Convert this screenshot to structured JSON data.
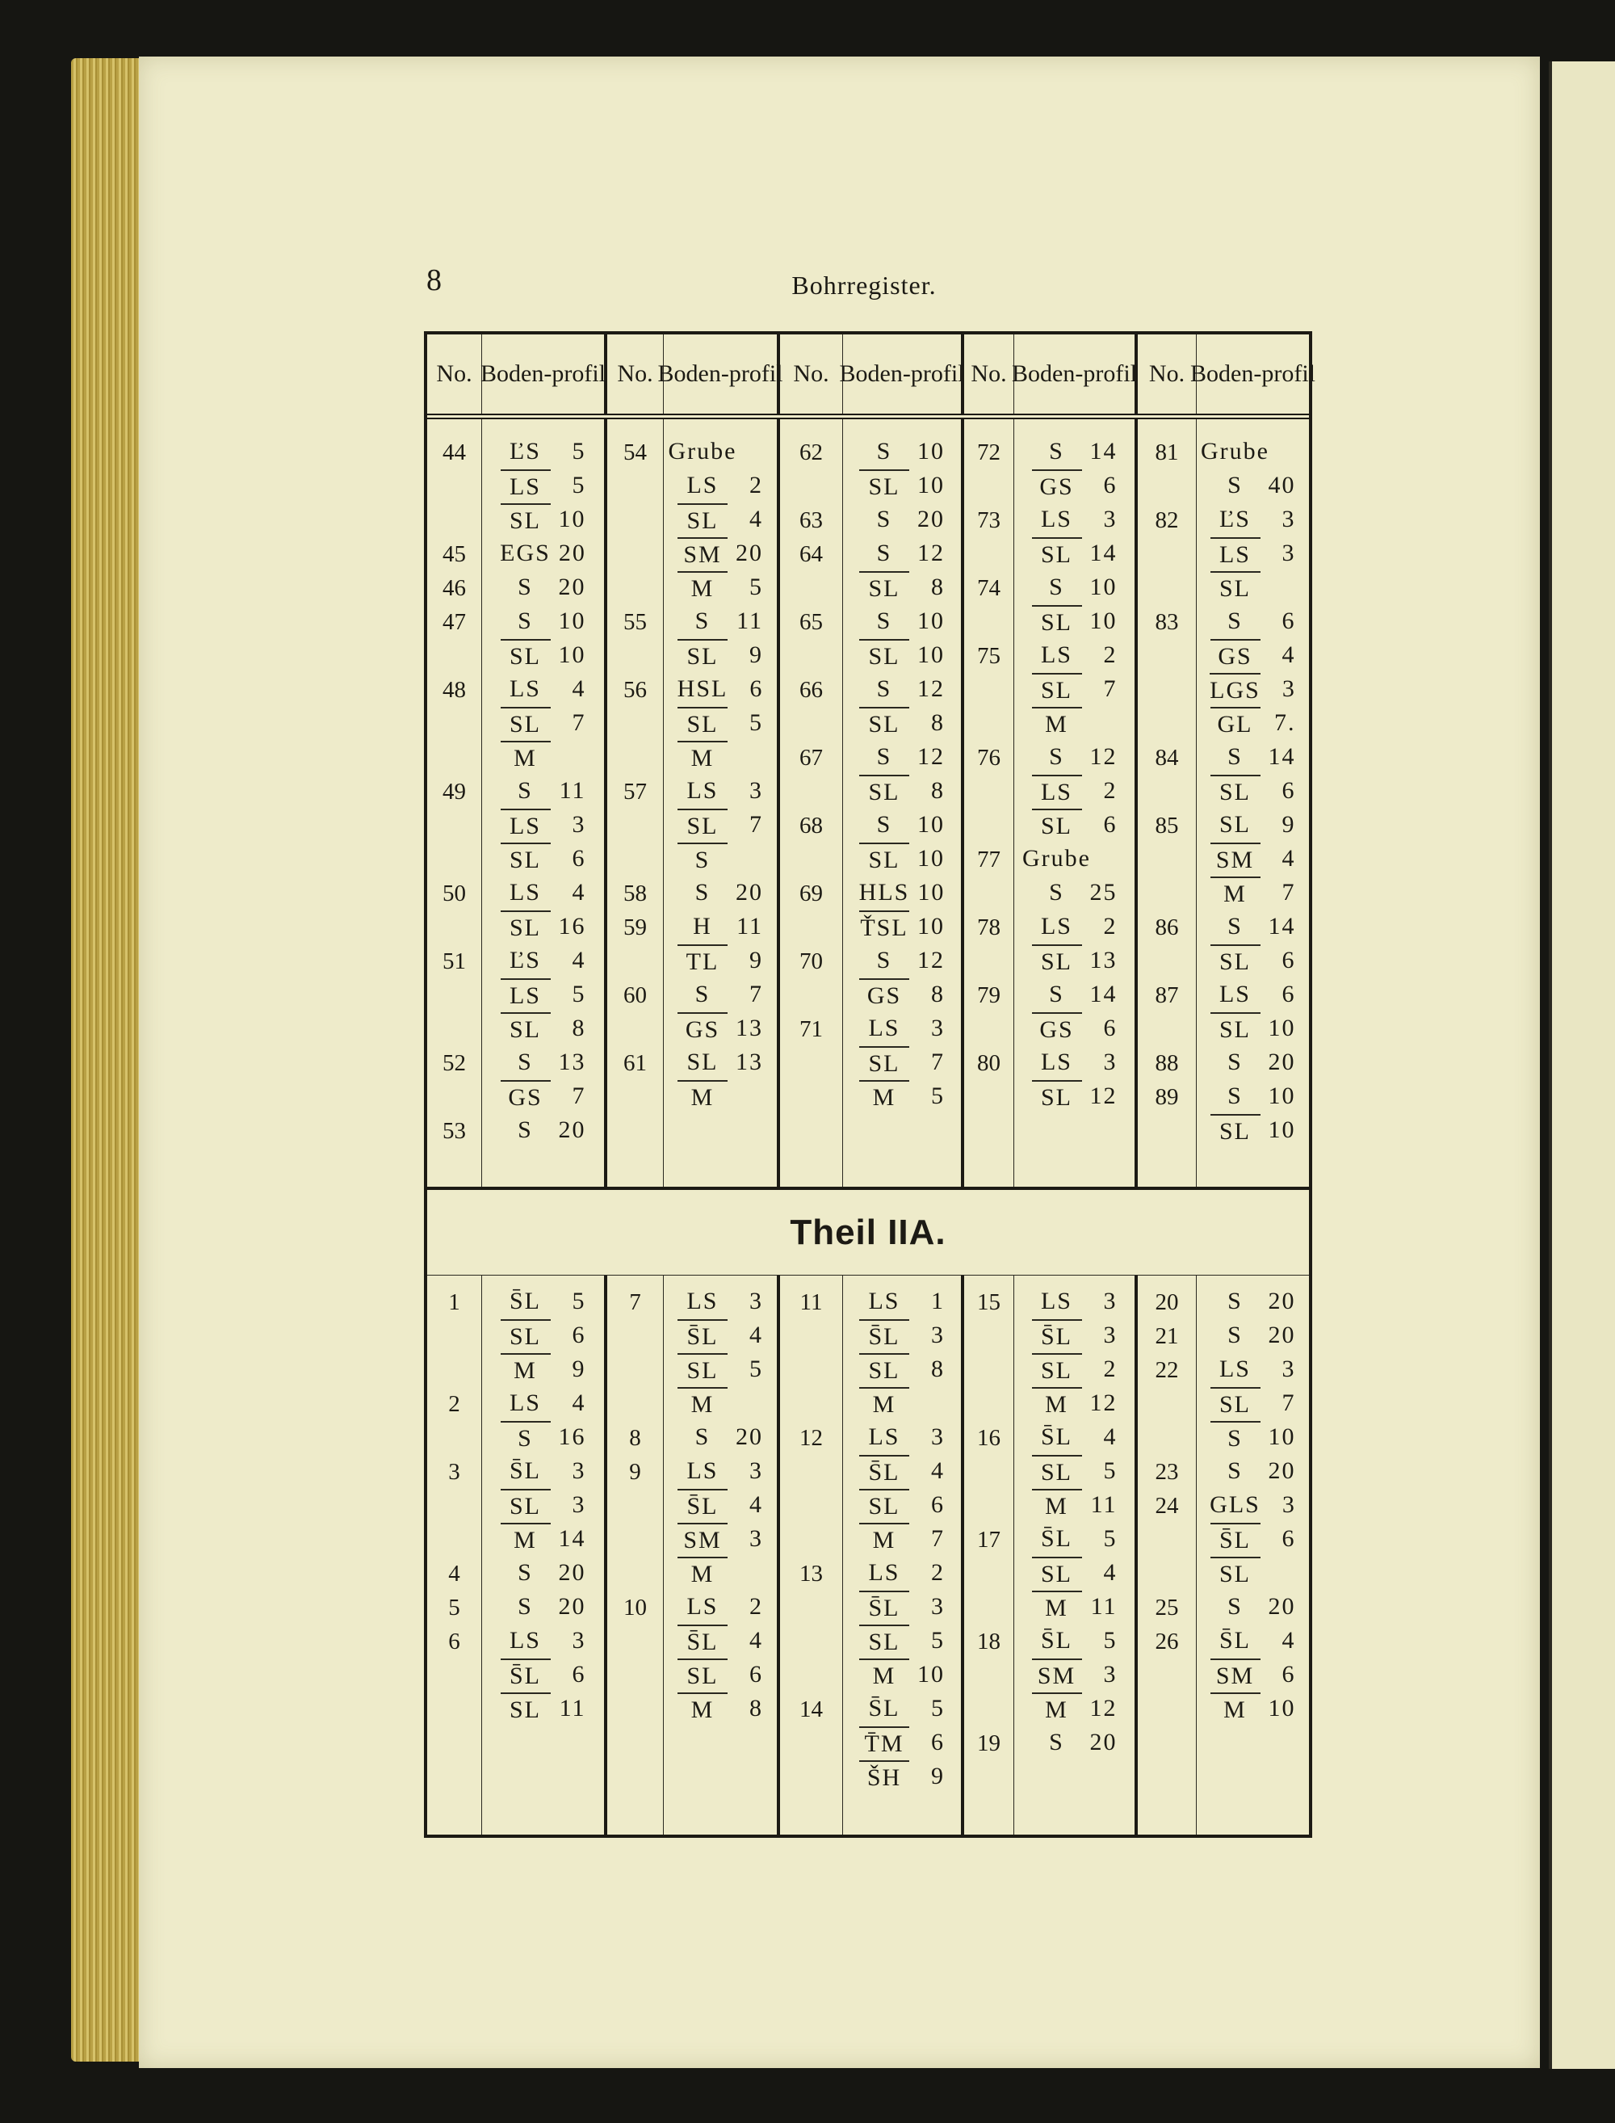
{
  "page_number": "8",
  "running_head": "Bohrregister.",
  "header": {
    "no": "No.",
    "profil": [
      "Boden-",
      "profil"
    ]
  },
  "section2_title": "Theil IIA.",
  "section1": [
    [
      {
        "no": "44",
        "l": [
          [
            "ĽS",
            "5",
            0
          ],
          [
            "LS",
            "5",
            1
          ],
          [
            "SL",
            "10",
            1
          ]
        ]
      },
      {
        "no": "45",
        "l": [
          [
            "EGS",
            "20",
            0
          ]
        ]
      },
      {
        "no": "46",
        "l": [
          [
            "S",
            "20",
            0
          ]
        ]
      },
      {
        "no": "47",
        "l": [
          [
            "S",
            "10",
            0
          ],
          [
            "SL",
            "10",
            1
          ]
        ]
      },
      {
        "no": "48",
        "l": [
          [
            "LS",
            "4",
            0
          ],
          [
            "SL",
            "7",
            1
          ],
          [
            "M",
            "",
            1
          ]
        ]
      },
      {
        "no": "49",
        "l": [
          [
            "S",
            "11",
            0
          ],
          [
            "LS",
            "3",
            1
          ],
          [
            "SL",
            "6",
            1
          ]
        ]
      },
      {
        "no": "50",
        "l": [
          [
            "LS",
            "4",
            0
          ],
          [
            "SL",
            "16",
            1
          ]
        ]
      },
      {
        "no": "51",
        "l": [
          [
            "ĽS",
            "4",
            0
          ],
          [
            "LS",
            "5",
            1
          ],
          [
            "SL",
            "8",
            1
          ]
        ]
      },
      {
        "no": "52",
        "l": [
          [
            "S",
            "13",
            0
          ],
          [
            "GS",
            "7",
            1
          ]
        ]
      },
      {
        "no": "53",
        "l": [
          [
            "S",
            "20",
            0
          ]
        ]
      }
    ],
    [
      {
        "no": "54",
        "l": [
          [
            "Grube",
            "",
            0
          ],
          [
            "LS",
            "2",
            0
          ],
          [
            "SL",
            "4",
            1
          ],
          [
            "SM",
            "20",
            1
          ],
          [
            "M",
            "5",
            1
          ]
        ]
      },
      {
        "no": "55",
        "l": [
          [
            "S",
            "11",
            0
          ],
          [
            "SL",
            "9",
            1
          ]
        ]
      },
      {
        "no": "56",
        "l": [
          [
            "HSL",
            "6",
            0
          ],
          [
            "SL",
            "5",
            1
          ],
          [
            "M",
            "",
            1
          ]
        ]
      },
      {
        "no": "57",
        "l": [
          [
            "LS",
            "3",
            0
          ],
          [
            "SL",
            "7",
            1
          ],
          [
            "S",
            "",
            1
          ]
        ]
      },
      {
        "no": "58",
        "l": [
          [
            "S",
            "20",
            0
          ]
        ]
      },
      {
        "no": "59",
        "l": [
          [
            "H",
            "11",
            0
          ],
          [
            "TL",
            "9",
            1
          ]
        ]
      },
      {
        "no": "60",
        "l": [
          [
            "S",
            "7",
            0
          ],
          [
            "GS",
            "13",
            1
          ]
        ]
      },
      {
        "no": "61",
        "l": [
          [
            "SL",
            "13",
            0
          ],
          [
            "M",
            "",
            1
          ]
        ]
      }
    ],
    [
      {
        "no": "62",
        "l": [
          [
            "S",
            "10",
            0
          ],
          [
            "SL",
            "10",
            1
          ]
        ]
      },
      {
        "no": "63",
        "l": [
          [
            "S",
            "20",
            0
          ]
        ]
      },
      {
        "no": "64",
        "l": [
          [
            "S",
            "12",
            0
          ],
          [
            "SL",
            "8",
            1
          ]
        ]
      },
      {
        "no": "65",
        "l": [
          [
            "S",
            "10",
            0
          ],
          [
            "SL",
            "10",
            1
          ]
        ]
      },
      {
        "no": "66",
        "l": [
          [
            "S",
            "12",
            0
          ],
          [
            "SL",
            "8",
            1
          ]
        ]
      },
      {
        "no": "67",
        "l": [
          [
            "S",
            "12",
            0
          ],
          [
            "SL",
            "8",
            1
          ]
        ]
      },
      {
        "no": "68",
        "l": [
          [
            "S",
            "10",
            0
          ],
          [
            "SL",
            "10",
            1
          ]
        ]
      },
      {
        "no": "69",
        "l": [
          [
            "HLS",
            "10",
            0
          ],
          [
            "ŤSL",
            "10",
            1
          ]
        ]
      },
      {
        "no": "70",
        "l": [
          [
            "S",
            "12",
            0
          ],
          [
            "GS",
            "8",
            1
          ]
        ]
      },
      {
        "no": "71",
        "l": [
          [
            "LS",
            "3",
            0
          ],
          [
            "SL",
            "7",
            1
          ],
          [
            "M",
            "5",
            1
          ]
        ]
      }
    ],
    [
      {
        "no": "72",
        "l": [
          [
            "S",
            "14",
            0
          ],
          [
            "GS",
            "6",
            1
          ]
        ]
      },
      {
        "no": "73",
        "l": [
          [
            "LS",
            "3",
            0
          ],
          [
            "SL",
            "14",
            1
          ]
        ]
      },
      {
        "no": "74",
        "l": [
          [
            "S",
            "10",
            0
          ],
          [
            "SL",
            "10",
            1
          ]
        ]
      },
      {
        "no": "75",
        "l": [
          [
            "LS",
            "2",
            0
          ],
          [
            "SL",
            "7",
            1
          ],
          [
            "M",
            "",
            1
          ]
        ]
      },
      {
        "no": "76",
        "l": [
          [
            "S",
            "12",
            0
          ],
          [
            "LS",
            "2",
            1
          ],
          [
            "SL",
            "6",
            1
          ]
        ]
      },
      {
        "no": "77",
        "l": [
          [
            "Grube",
            "",
            0
          ],
          [
            "S",
            "25",
            0
          ]
        ]
      },
      {
        "no": "78",
        "l": [
          [
            "LS",
            "2",
            0
          ],
          [
            "SL",
            "13",
            1
          ]
        ]
      },
      {
        "no": "79",
        "l": [
          [
            "S",
            "14",
            0
          ],
          [
            "GS",
            "6",
            1
          ]
        ]
      },
      {
        "no": "80",
        "l": [
          [
            "LS",
            "3",
            0
          ],
          [
            "SL",
            "12",
            1
          ]
        ]
      }
    ],
    [
      {
        "no": "81",
        "l": [
          [
            "Grube",
            "",
            0
          ],
          [
            "S",
            "40",
            0
          ]
        ]
      },
      {
        "no": "82",
        "l": [
          [
            "ĽS",
            "3",
            0
          ],
          [
            "LS",
            "3",
            1
          ],
          [
            "SL",
            "",
            1
          ]
        ]
      },
      {
        "no": "83",
        "l": [
          [
            "S",
            "6",
            0
          ],
          [
            "GS",
            "4",
            1
          ],
          [
            "LGS",
            "3",
            1
          ],
          [
            "GL",
            "7.",
            1
          ]
        ]
      },
      {
        "no": "84",
        "l": [
          [
            "S",
            "14",
            0
          ],
          [
            "SL",
            "6",
            1
          ]
        ]
      },
      {
        "no": "85",
        "l": [
          [
            "SL",
            "9",
            0
          ],
          [
            "SM",
            "4",
            1
          ],
          [
            "M",
            "7",
            1
          ]
        ]
      },
      {
        "no": "86",
        "l": [
          [
            "S",
            "14",
            0
          ],
          [
            "SL",
            "6",
            1
          ]
        ]
      },
      {
        "no": "87",
        "l": [
          [
            "LS",
            "6",
            0
          ],
          [
            "SL",
            "10",
            1
          ]
        ]
      },
      {
        "no": "88",
        "l": [
          [
            "S",
            "20",
            0
          ]
        ]
      },
      {
        "no": "89",
        "l": [
          [
            "S",
            "10",
            0
          ],
          [
            "SL",
            "10",
            1
          ]
        ]
      }
    ]
  ],
  "section2": [
    [
      {
        "no": "1",
        "l": [
          [
            "S̄L",
            "5",
            0
          ],
          [
            "SL",
            "6",
            1
          ],
          [
            "M",
            "9",
            1
          ]
        ]
      },
      {
        "no": "2",
        "l": [
          [
            "LS",
            "4",
            0
          ],
          [
            "S",
            "16",
            1
          ]
        ]
      },
      {
        "no": "3",
        "l": [
          [
            "S̄L",
            "3",
            0
          ],
          [
            "SL",
            "3",
            1
          ],
          [
            "M",
            "14",
            1
          ]
        ]
      },
      {
        "no": "4",
        "l": [
          [
            "S",
            "20",
            0
          ]
        ]
      },
      {
        "no": "5",
        "l": [
          [
            "S",
            "20",
            0
          ]
        ]
      },
      {
        "no": "6",
        "l": [
          [
            "LS",
            "3",
            0
          ],
          [
            "S̄L",
            "6",
            1
          ],
          [
            "SL",
            "11",
            1
          ]
        ]
      }
    ],
    [
      {
        "no": "7",
        "l": [
          [
            "LS",
            "3",
            0
          ],
          [
            "S̄L",
            "4",
            1
          ],
          [
            "SL",
            "5",
            1
          ],
          [
            "M",
            "",
            1
          ]
        ]
      },
      {
        "no": "8",
        "l": [
          [
            "S",
            "20",
            0
          ]
        ]
      },
      {
        "no": "9",
        "l": [
          [
            "LS",
            "3",
            0
          ],
          [
            "S̄L",
            "4",
            1
          ],
          [
            "SM",
            "3",
            1
          ],
          [
            "M",
            "",
            1
          ]
        ]
      },
      {
        "no": "10",
        "l": [
          [
            "LS",
            "2",
            0
          ],
          [
            "S̄L",
            "4",
            1
          ],
          [
            "SL",
            "6",
            1
          ],
          [
            "M",
            "8",
            1
          ]
        ]
      }
    ],
    [
      {
        "no": "11",
        "l": [
          [
            "LS",
            "1",
            0
          ],
          [
            "S̄L",
            "3",
            1
          ],
          [
            "SL",
            "8",
            1
          ],
          [
            "M",
            "",
            1
          ]
        ]
      },
      {
        "no": "12",
        "l": [
          [
            "LS",
            "3",
            0
          ],
          [
            "S̄L",
            "4",
            1
          ],
          [
            "SL",
            "6",
            1
          ],
          [
            "M",
            "7",
            1
          ]
        ]
      },
      {
        "no": "13",
        "l": [
          [
            "LS",
            "2",
            0
          ],
          [
            "S̄L",
            "3",
            1
          ],
          [
            "SL",
            "5",
            1
          ],
          [
            "M",
            "10",
            1
          ]
        ]
      },
      {
        "no": "14",
        "l": [
          [
            "S̄L",
            "5",
            0
          ],
          [
            "T̄M",
            "6",
            1
          ],
          [
            "ŠH",
            "9",
            1
          ]
        ]
      }
    ],
    [
      {
        "no": "15",
        "l": [
          [
            "LS",
            "3",
            0
          ],
          [
            "S̄L",
            "3",
            1
          ],
          [
            "SL",
            "2",
            1
          ],
          [
            "M",
            "12",
            1
          ]
        ]
      },
      {
        "no": "16",
        "l": [
          [
            "S̄L",
            "4",
            0
          ],
          [
            "SL",
            "5",
            1
          ],
          [
            "M",
            "11",
            1
          ]
        ]
      },
      {
        "no": "17",
        "l": [
          [
            "S̄L",
            "5",
            0
          ],
          [
            "SL",
            "4",
            1
          ],
          [
            "M",
            "11",
            1
          ]
        ]
      },
      {
        "no": "18",
        "l": [
          [
            "S̄L",
            "5",
            0
          ],
          [
            "SM",
            "3",
            1
          ],
          [
            "M",
            "12",
            1
          ]
        ]
      },
      {
        "no": "19",
        "l": [
          [
            "S",
            "20",
            0
          ]
        ]
      }
    ],
    [
      {
        "no": "20",
        "l": [
          [
            "S",
            "20",
            0
          ]
        ]
      },
      {
        "no": "21",
        "l": [
          [
            "S",
            "20",
            0
          ]
        ]
      },
      {
        "no": "22",
        "l": [
          [
            "LS",
            "3",
            0
          ],
          [
            "SL",
            "7",
            1
          ],
          [
            "S",
            "10",
            1
          ]
        ]
      },
      {
        "no": "23",
        "l": [
          [
            "S",
            "20",
            0
          ]
        ]
      },
      {
        "no": "24",
        "l": [
          [
            "GLS",
            "3",
            0
          ],
          [
            "S̄L",
            "6",
            1
          ],
          [
            "SL",
            "",
            1
          ]
        ]
      },
      {
        "no": "25",
        "l": [
          [
            "S",
            "20",
            0
          ]
        ]
      },
      {
        "no": "26",
        "l": [
          [
            "S̄L",
            "4",
            0
          ],
          [
            "SM",
            "6",
            1
          ],
          [
            "M",
            "10",
            1
          ]
        ]
      }
    ]
  ]
}
